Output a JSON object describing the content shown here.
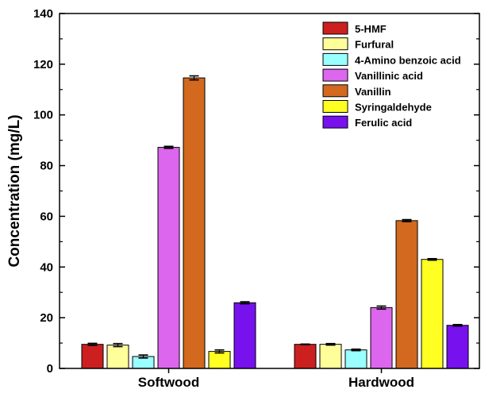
{
  "chart_data": {
    "type": "bar",
    "title": "",
    "xlabel": "",
    "ylabel": "Concentration (mg/L)",
    "ylim": [
      0,
      140
    ],
    "yticks": [
      0,
      20,
      40,
      60,
      80,
      100,
      120,
      140
    ],
    "grid": false,
    "legend_position": "top-right",
    "error_bars": true,
    "categories": [
      "Softwood",
      "Hardwood"
    ],
    "series": [
      {
        "name": "5-HMF",
        "color": "#cc1f1f",
        "values": [
          9.5,
          9.5
        ],
        "errors": [
          0.4,
          0.1
        ]
      },
      {
        "name": "Furfural",
        "color": "#ffff99",
        "values": [
          9.2,
          9.5
        ],
        "errors": [
          0.6,
          0.3
        ]
      },
      {
        "name": "4-Amino benzoic acid",
        "color": "#99ffff",
        "values": [
          4.7,
          7.3
        ],
        "errors": [
          0.6,
          0.3
        ]
      },
      {
        "name": "Vanillinic acid",
        "color": "#dd66ee",
        "values": [
          87.2,
          24.0
        ],
        "errors": [
          0.4,
          0.6
        ]
      },
      {
        "name": "Vanillin",
        "color": "#d2691e",
        "values": [
          114.6,
          58.3
        ],
        "errors": [
          0.8,
          0.4
        ]
      },
      {
        "name": "Syringaldehyde",
        "color": "#ffff22",
        "values": [
          6.7,
          43.0
        ],
        "errors": [
          0.6,
          0.3
        ]
      },
      {
        "name": "Ferulic acid",
        "color": "#7711ee",
        "values": [
          25.9,
          17.0
        ],
        "errors": [
          0.4,
          0.3
        ]
      }
    ]
  }
}
